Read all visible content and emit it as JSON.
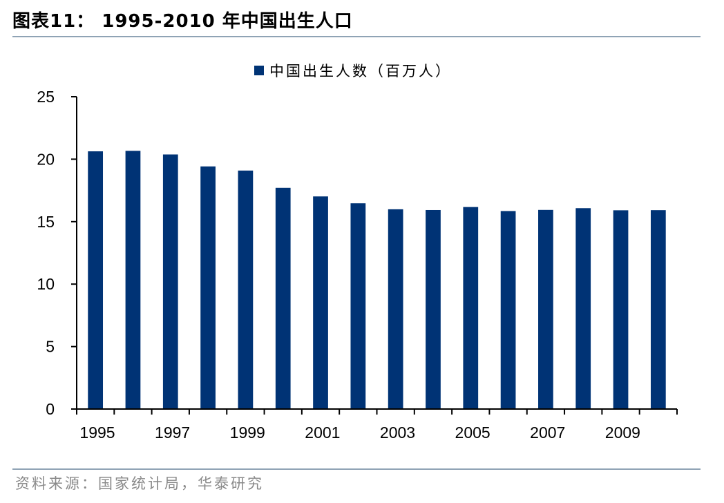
{
  "figure": {
    "title": "图表11： 1995-2010 年中国出生人口",
    "source": "资料来源：国家统计局，华泰研究"
  },
  "colors": {
    "bar": "#003375",
    "axis": "#000000",
    "rule": "#8fa3b5"
  },
  "chart_data": {
    "type": "bar",
    "categories": [
      "1995",
      "1996",
      "1997",
      "1998",
      "1999",
      "2000",
      "2001",
      "2002",
      "2003",
      "2004",
      "2005",
      "2006",
      "2007",
      "2008",
      "2009",
      "2010"
    ],
    "x_tick_labels": [
      "1995",
      "",
      "1997",
      "",
      "1999",
      "",
      "2001",
      "",
      "2003",
      "",
      "2005",
      "",
      "2007",
      "",
      "2009",
      ""
    ],
    "series": [
      {
        "name": "中国出生人数（百万人）",
        "values": [
          20.63,
          20.67,
          20.38,
          19.42,
          19.09,
          17.71,
          17.02,
          16.47,
          15.99,
          15.93,
          16.17,
          15.85,
          15.94,
          16.08,
          15.91,
          15.92
        ]
      }
    ],
    "ylim": [
      0,
      25
    ],
    "yticks": [
      0,
      5,
      10,
      15,
      20,
      25
    ],
    "grid": false,
    "legend": "top-center"
  }
}
